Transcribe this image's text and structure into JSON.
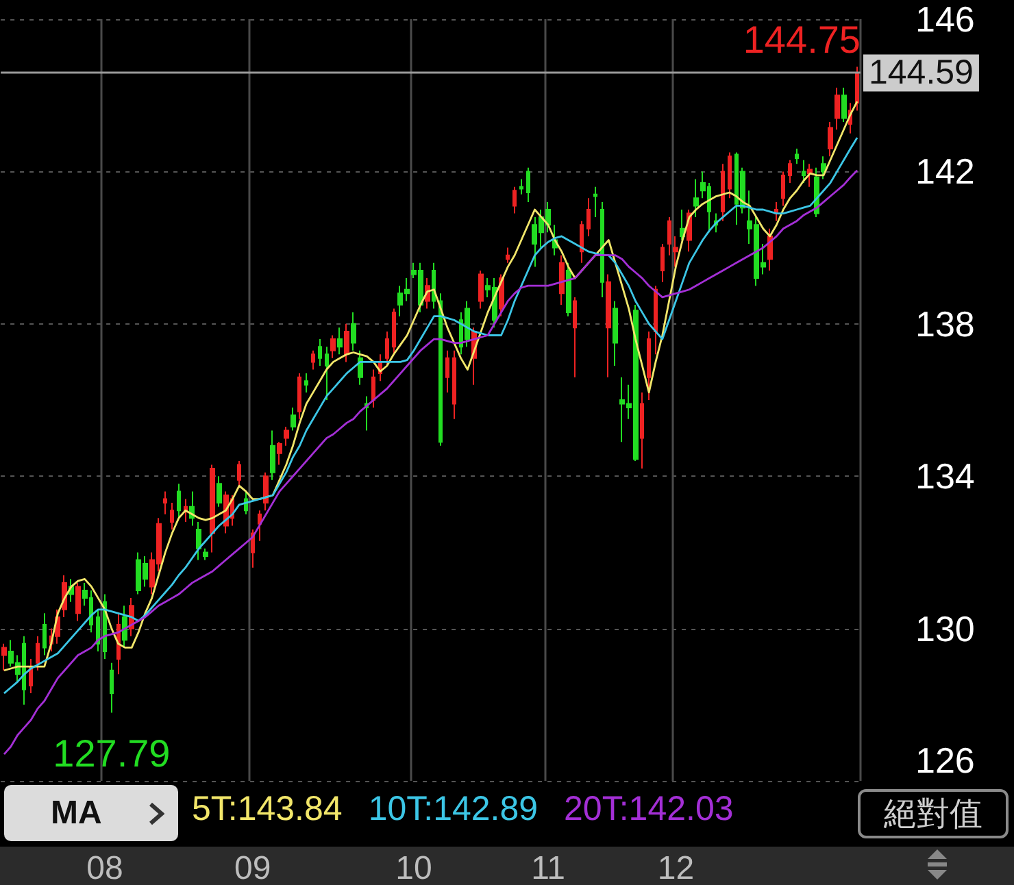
{
  "chart_data": {
    "type": "candlestick",
    "categories": [
      null,
      null,
      null,
      null,
      null,
      null,
      null,
      null,
      null,
      null,
      null,
      null,
      null,
      null,
      null,
      "08",
      null,
      null,
      null,
      null,
      null,
      null,
      null,
      null,
      null,
      null,
      null,
      null,
      null,
      null,
      null,
      null,
      null,
      null,
      null,
      null,
      null,
      "09",
      null,
      null,
      null,
      null,
      null,
      null,
      null,
      null,
      null,
      null,
      null,
      null,
      null,
      null,
      null,
      null,
      null,
      null,
      null,
      null,
      null,
      null,
      null,
      "10",
      null,
      null,
      null,
      null,
      null,
      null,
      null,
      null,
      null,
      null,
      null,
      null,
      null,
      null,
      null,
      null,
      null,
      null,
      null,
      "11",
      null,
      null,
      null,
      null,
      null,
      null,
      null,
      null,
      null,
      null,
      null,
      null,
      null,
      null,
      null,
      null,
      null,
      null,
      "12",
      null,
      null,
      null,
      null,
      null,
      null,
      null,
      null,
      null,
      null,
      null,
      null,
      null,
      null,
      null,
      null,
      null,
      null,
      null,
      null,
      null,
      null,
      null,
      null,
      null,
      null,
      null
    ],
    "ohlc": [
      [
        129.3,
        129.6,
        128.9,
        129.5
      ],
      [
        129.4,
        129.7,
        129.0,
        129.1
      ],
      [
        129.1,
        129.3,
        128.6,
        128.8
      ],
      [
        129.6,
        129.8,
        128.0,
        128.4
      ],
      [
        128.5,
        129.2,
        128.3,
        129.0
      ],
      [
        129.1,
        129.8,
        128.9,
        129.6
      ],
      [
        130.1,
        130.4,
        129.3,
        129.5
      ],
      [
        129.6,
        130.0,
        129.4,
        129.8
      ],
      [
        129.8,
        130.5,
        129.6,
        130.3
      ],
      [
        130.5,
        131.4,
        130.3,
        131.2
      ],
      [
        131.1,
        131.3,
        130.7,
        130.9
      ],
      [
        130.4,
        131.2,
        130.2,
        131.1
      ],
      [
        131.0,
        131.2,
        130.6,
        130.8
      ],
      [
        130.8,
        131.0,
        129.9,
        130.1
      ],
      [
        130.3,
        130.5,
        129.4,
        129.6
      ],
      [
        130.7,
        130.9,
        129.2,
        129.4
      ],
      [
        128.9,
        129.1,
        127.79,
        128.3
      ],
      [
        129.2,
        130.4,
        128.8,
        130.1
      ],
      [
        130.3,
        130.6,
        129.5,
        129.7
      ],
      [
        130.0,
        130.8,
        129.8,
        130.6
      ],
      [
        131.8,
        132.0,
        130.9,
        131.0
      ],
      [
        131.7,
        131.9,
        131.1,
        131.3
      ],
      [
        131.1,
        132.0,
        130.9,
        131.8
      ],
      [
        131.7,
        132.9,
        131.5,
        132.75
      ],
      [
        133.3,
        133.6,
        133.0,
        133.4
      ],
      [
        132.8,
        133.3,
        132.6,
        133.1
      ],
      [
        133.6,
        133.8,
        132.9,
        133.1
      ],
      [
        133.1,
        133.4,
        132.8,
        133.2
      ],
      [
        133.2,
        133.6,
        132.7,
        132.9
      ],
      [
        132.6,
        132.8,
        131.8,
        132.1
      ],
      [
        132.0,
        132.1,
        131.8,
        131.9
      ],
      [
        132.5,
        134.3,
        132.0,
        134.2
      ],
      [
        133.8,
        134.0,
        133.2,
        133.3
      ],
      [
        132.7,
        133.6,
        132.5,
        133.5
      ],
      [
        132.9,
        133.5,
        132.7,
        133.4
      ],
      [
        133.9,
        134.4,
        133.7,
        134.3
      ],
      [
        133.4,
        133.6,
        133.0,
        133.1
      ],
      [
        132.0,
        132.6,
        131.6,
        132.5
      ],
      [
        132.75,
        133.1,
        132.3,
        133.0
      ],
      [
        133.3,
        134.1,
        133.1,
        134.0
      ],
      [
        134.8,
        135.2,
        133.9,
        134.1
      ],
      [
        134.6,
        134.9,
        134.3,
        134.85
      ],
      [
        135.0,
        135.3,
        134.8,
        135.2
      ],
      [
        135.6,
        135.8,
        135.2,
        135.3
      ],
      [
        135.7,
        136.7,
        135.5,
        136.6
      ],
      [
        136.5,
        136.7,
        136.2,
        136.4
      ],
      [
        137.0,
        137.3,
        136.8,
        137.2
      ],
      [
        137.4,
        137.6,
        136.9,
        137.1
      ],
      [
        137.2,
        137.4,
        136.0,
        136.9
      ],
      [
        137.3,
        137.7,
        137.1,
        137.6
      ],
      [
        137.6,
        137.9,
        137.2,
        137.4
      ],
      [
        137.2,
        138.0,
        137.0,
        137.8
      ],
      [
        138.0,
        138.3,
        137.3,
        137.5
      ],
      [
        137.1,
        137.3,
        136.4,
        136.6
      ],
      [
        135.9,
        136.1,
        135.2,
        135.8
      ],
      [
        136.0,
        136.8,
        135.8,
        136.6
      ],
      [
        136.7,
        137.2,
        136.5,
        137.0
      ],
      [
        137.1,
        137.8,
        136.9,
        137.6
      ],
      [
        137.4,
        138.4,
        137.2,
        138.3
      ],
      [
        138.8,
        139.0,
        138.2,
        138.5
      ],
      [
        138.9,
        139.2,
        138.6,
        138.8
      ],
      [
        139.4,
        139.6,
        139.2,
        139.3
      ],
      [
        139.4,
        139.6,
        138.3,
        138.5
      ],
      [
        138.6,
        139.2,
        138.4,
        139.0
      ],
      [
        139.4,
        139.6,
        138.4,
        138.6
      ],
      [
        138.6,
        138.8,
        134.8,
        134.9
      ],
      [
        136.6,
        137.3,
        136.2,
        137.1
      ],
      [
        135.9,
        137.3,
        135.5,
        137.1
      ],
      [
        138.1,
        138.3,
        137.2,
        137.4
      ],
      [
        138.4,
        138.6,
        137.4,
        137.6
      ],
      [
        137.1,
        137.9,
        136.4,
        137.8
      ],
      [
        138.6,
        139.4,
        138.4,
        139.3
      ],
      [
        139.0,
        139.2,
        138.7,
        138.9
      ],
      [
        138.95,
        139.2,
        137.9,
        138.1
      ],
      [
        138.4,
        139.3,
        138.2,
        139.2
      ],
      [
        139.7,
        140.0,
        139.6,
        139.8
      ],
      [
        141.1,
        141.6,
        140.9,
        141.5
      ],
      [
        141.6,
        141.8,
        141.4,
        141.55
      ],
      [
        142.0,
        142.1,
        141.2,
        141.45
      ],
      [
        140.6,
        140.8,
        139.5,
        140.1
      ],
      [
        140.8,
        141.0,
        140.0,
        140.4
      ],
      [
        141.0,
        141.2,
        140.4,
        140.6
      ],
      [
        140.2,
        140.6,
        139.8,
        140.0
      ],
      [
        138.8,
        139.8,
        138.5,
        139.6
      ],
      [
        139.4,
        139.6,
        138.2,
        138.3
      ],
      [
        137.9,
        138.7,
        136.6,
        138.6
      ],
      [
        139.9,
        140.7,
        139.6,
        140.6
      ],
      [
        140.5,
        141.3,
        140.3,
        141.0
      ],
      [
        141.4,
        141.6,
        140.8,
        141.35
      ],
      [
        141.0,
        141.2,
        138.7,
        139.1
      ],
      [
        137.9,
        139.3,
        136.6,
        139.1
      ],
      [
        138.4,
        138.6,
        136.9,
        137.5
      ],
      [
        136.0,
        136.6,
        134.9,
        135.9
      ],
      [
        135.9,
        136.4,
        135.5,
        135.8
      ],
      [
        138.35,
        138.5,
        134.4,
        134.45
      ],
      [
        135.0,
        136.2,
        134.2,
        135.9
      ],
      [
        136.6,
        137.8,
        136.0,
        137.6
      ],
      [
        137.8,
        139.0,
        137.2,
        138.9
      ],
      [
        139.4,
        140.1,
        139.1,
        140.0
      ],
      [
        140.1,
        140.8,
        139.8,
        140.7
      ],
      [
        139.9,
        140.3,
        139.5,
        140.0
      ],
      [
        140.5,
        141.0,
        140.2,
        140.3
      ],
      [
        140.2,
        141.0,
        139.9,
        140.9
      ],
      [
        141.3,
        141.8,
        140.8,
        141.1
      ],
      [
        141.7,
        142.0,
        141.3,
        141.5
      ],
      [
        141.6,
        141.7,
        140.4,
        140.95
      ],
      [
        140.7,
        140.9,
        140.4,
        140.6
      ],
      [
        140.95,
        142.2,
        140.7,
        142.0
      ],
      [
        141.55,
        142.5,
        141.3,
        142.4
      ],
      [
        142.45,
        142.5,
        140.6,
        141.15
      ],
      [
        142.0,
        142.1,
        140.9,
        141.05
      ],
      [
        140.7,
        141.5,
        140.1,
        140.5
      ],
      [
        140.6,
        140.8,
        139.0,
        139.2
      ],
      [
        139.6,
        140.1,
        139.3,
        139.5
      ],
      [
        139.7,
        140.5,
        139.4,
        140.3
      ],
      [
        140.9,
        141.2,
        140.7,
        141.0
      ],
      [
        141.3,
        142.0,
        141.1,
        141.9
      ],
      [
        141.9,
        142.3,
        141.7,
        142.2
      ],
      [
        142.45,
        142.6,
        142.2,
        142.35
      ],
      [
        142.0,
        142.3,
        141.7,
        141.9
      ],
      [
        141.95,
        142.2,
        141.6,
        142.05
      ],
      [
        141.85,
        142.1,
        140.8,
        140.9
      ],
      [
        142.2,
        142.4,
        141.8,
        142.0
      ],
      [
        142.6,
        143.3,
        142.4,
        143.15
      ],
      [
        143.4,
        144.2,
        143.1,
        144.0
      ],
      [
        144.0,
        144.2,
        143.3,
        143.4
      ],
      [
        143.25,
        143.8,
        143.0,
        143.6
      ],
      [
        143.8,
        144.75,
        143.6,
        144.59
      ]
    ],
    "colors": [
      "#ee2222",
      "#22dd22",
      "#22dd22",
      "#22dd22",
      "#ee2222",
      "#ee2222",
      "#22dd22",
      "#ee2222",
      "#ee2222",
      "#ee2222",
      "#22dd22",
      "#ee2222",
      "#22dd22",
      "#22dd22",
      "#22dd22",
      "#22dd22",
      "#22dd22",
      "#ee2222",
      "#22dd22",
      "#ee2222",
      "#22dd22",
      "#22dd22",
      "#ee2222",
      "#ee2222",
      "#ee2222",
      "#ee2222",
      "#22dd22",
      "#ee2222",
      "#22dd22",
      "#22dd22",
      "#22dd22",
      "#ee2222",
      "#22dd22",
      "#ee2222",
      "#ee2222",
      "#ee2222",
      "#22dd22",
      "#ee2222",
      "#ee2222",
      "#ee2222",
      "#22dd22",
      "#ee2222",
      "#ee2222",
      "#22dd22",
      "#ee2222",
      "#22dd22",
      "#ee2222",
      "#22dd22",
      "#22dd22",
      "#ee2222",
      "#22dd22",
      "#ee2222",
      "#22dd22",
      "#22dd22",
      "#22dd22",
      "#ee2222",
      "#ee2222",
      "#ee2222",
      "#ee2222",
      "#22dd22",
      "#22dd22",
      "#22dd22",
      "#22dd22",
      "#ee2222",
      "#22dd22",
      "#22dd22",
      "#ee2222",
      "#ee2222",
      "#22dd22",
      "#22dd22",
      "#ee2222",
      "#ee2222",
      "#22dd22",
      "#22dd22",
      "#ee2222",
      "#ee2222",
      "#ee2222",
      "#22dd22",
      "#22dd22",
      "#22dd22",
      "#22dd22",
      "#22dd22",
      "#22dd22",
      "#ee2222",
      "#22dd22",
      "#ee2222",
      "#ee2222",
      "#ee2222",
      "#22dd22",
      "#22dd22",
      "#ee2222",
      "#22dd22",
      "#22dd22",
      "#22dd22",
      "#22dd22",
      "#ee2222",
      "#ee2222",
      "#ee2222",
      "#ee2222",
      "#ee2222",
      "#ee2222",
      "#22dd22",
      "#ee2222",
      "#22dd22",
      "#22dd22",
      "#22dd22",
      "#22dd22",
      "#ee2222",
      "#ee2222",
      "#22dd22",
      "#22dd22",
      "#22dd22",
      "#22dd22",
      "#22dd22",
      "#ee2222",
      "#ee2222",
      "#ee2222",
      "#ee2222",
      "#22dd22",
      "#22dd22",
      "#ee2222",
      "#22dd22",
      "#22dd22",
      "#ee2222",
      "#ee2222",
      "#22dd22",
      "#ee2222",
      "#ee2222"
    ],
    "series": [
      {
        "name": "5T:143.84",
        "type": "line",
        "color": "#f2e66a",
        "values": [
          128.9,
          128.95,
          129.0,
          129.0,
          129.0,
          129.0,
          129.0,
          129.6,
          130.4,
          130.8,
          131.1,
          131.25,
          131.3,
          131.1,
          130.8,
          130.5,
          130.0,
          129.6,
          129.5,
          129.5,
          129.9,
          130.4,
          130.8,
          131.4,
          132.0,
          132.5,
          132.9,
          133.1,
          133.0,
          132.9,
          132.85,
          132.9,
          133.0,
          133.1,
          133.4,
          133.75,
          133.6,
          133.4,
          133.4,
          133.45,
          133.5,
          133.9,
          134.3,
          134.8,
          135.4,
          135.9,
          136.2,
          136.5,
          136.8,
          137.0,
          137.1,
          137.2,
          137.25,
          137.2,
          137.15,
          137.0,
          136.75,
          136.9,
          137.2,
          137.45,
          137.7,
          138.1,
          138.5,
          138.85,
          138.9,
          138.4,
          137.9,
          137.5,
          137.1,
          136.8,
          137.3,
          137.8,
          138.3,
          138.7,
          139.1,
          139.5,
          139.8,
          140.2,
          140.6,
          141.0,
          140.8,
          140.6,
          140.2,
          139.9,
          139.5,
          139.2,
          139.4,
          139.6,
          139.8,
          140.0,
          140.2,
          139.6,
          139.0,
          138.4,
          137.6,
          136.9,
          136.2,
          137.0,
          137.7,
          138.6,
          139.5,
          140.2,
          140.8,
          141.0,
          141.15,
          141.25,
          141.35,
          141.4,
          141.45,
          141.35,
          141.2,
          141.1,
          140.8,
          140.5,
          140.3,
          140.6,
          141.0,
          141.3,
          141.5,
          141.75,
          141.95,
          141.9,
          141.9,
          142.3,
          142.7,
          143.1,
          143.5,
          143.84
        ]
      },
      {
        "name": "10T:142.89",
        "type": "line",
        "color": "#3cc6e6",
        "values": [
          128.3,
          128.45,
          128.6,
          128.8,
          128.95,
          129.05,
          129.15,
          129.25,
          129.35,
          129.55,
          129.75,
          129.95,
          130.15,
          130.35,
          130.5,
          130.5,
          130.45,
          130.4,
          130.35,
          130.3,
          130.2,
          130.35,
          130.55,
          130.75,
          130.95,
          131.15,
          131.4,
          131.6,
          131.85,
          132.1,
          132.3,
          132.5,
          132.7,
          132.85,
          133.0,
          133.25,
          133.3,
          133.35,
          133.4,
          133.45,
          133.5,
          133.8,
          134.1,
          134.5,
          134.8,
          135.2,
          135.5,
          135.8,
          136.1,
          136.3,
          136.5,
          136.7,
          136.85,
          137.0,
          137.0,
          137.0,
          137.0,
          137.0,
          137.0,
          137.0,
          137.05,
          137.3,
          137.6,
          137.9,
          138.2,
          138.2,
          138.15,
          138.1,
          138.0,
          137.9,
          137.8,
          137.75,
          137.7,
          137.7,
          137.7,
          138.1,
          138.6,
          139.0,
          139.4,
          139.8,
          140.0,
          140.15,
          140.25,
          140.3,
          140.2,
          140.1,
          140.0,
          139.9,
          139.85,
          139.8,
          139.8,
          139.6,
          139.3,
          139.0,
          138.6,
          138.3,
          138.0,
          137.8,
          137.6,
          138.1,
          138.6,
          139.1,
          139.6,
          139.9,
          140.2,
          140.45,
          140.65,
          140.8,
          140.95,
          141.1,
          141.1,
          141.05,
          141.0,
          141.0,
          140.95,
          140.9,
          140.9,
          140.95,
          141.0,
          141.05,
          141.1,
          141.3,
          141.5,
          141.7,
          142.0,
          142.3,
          142.6,
          142.89
        ]
      },
      {
        "name": "20T:142.03",
        "type": "line",
        "color": "#a42fd6",
        "values": [
          126.7,
          126.9,
          127.2,
          127.4,
          127.6,
          127.9,
          128.1,
          128.4,
          128.7,
          128.9,
          129.1,
          129.3,
          129.4,
          129.5,
          129.7,
          129.8,
          129.85,
          129.9,
          130.0,
          130.1,
          130.2,
          130.3,
          130.45,
          130.6,
          130.7,
          130.8,
          130.9,
          131.05,
          131.2,
          131.3,
          131.4,
          131.5,
          131.65,
          131.8,
          131.95,
          132.1,
          132.25,
          132.4,
          132.7,
          133.0,
          133.3,
          133.6,
          133.8,
          134.0,
          134.2,
          134.4,
          134.6,
          134.8,
          135.0,
          135.1,
          135.25,
          135.4,
          135.5,
          135.7,
          135.85,
          136.0,
          136.15,
          136.3,
          136.5,
          136.7,
          136.9,
          137.1,
          137.3,
          137.45,
          137.6,
          137.6,
          137.55,
          137.5,
          137.5,
          137.55,
          137.6,
          137.65,
          137.7,
          138.0,
          138.3,
          138.6,
          138.8,
          138.95,
          139.0,
          139.0,
          139.0,
          139.0,
          139.05,
          139.1,
          139.15,
          139.2,
          139.4,
          139.6,
          139.8,
          139.8,
          139.8,
          139.8,
          139.7,
          139.5,
          139.35,
          139.2,
          139.0,
          138.85,
          138.7,
          138.75,
          138.8,
          138.85,
          138.9,
          139.0,
          139.1,
          139.2,
          139.3,
          139.4,
          139.5,
          139.6,
          139.7,
          139.8,
          139.9,
          140.0,
          140.15,
          140.3,
          140.5,
          140.6,
          140.7,
          140.85,
          140.95,
          141.05,
          141.2,
          141.35,
          141.5,
          141.65,
          141.85,
          142.03
        ]
      }
    ],
    "ylim": [
      126,
      146
    ],
    "yticks": [
      126,
      130,
      134,
      138,
      142,
      146
    ],
    "grid": true,
    "legend": "bottom",
    "ref_lines": [
      {
        "axis": "y",
        "value": 144.59,
        "label": "144.59",
        "color": "#9a9a9a"
      }
    ],
    "annotations": [
      {
        "text": "127.79",
        "y": 127.79
      },
      {
        "text": "144.75",
        "y": 144.75
      },
      "MA",
      "絕對值"
    ]
  }
}
